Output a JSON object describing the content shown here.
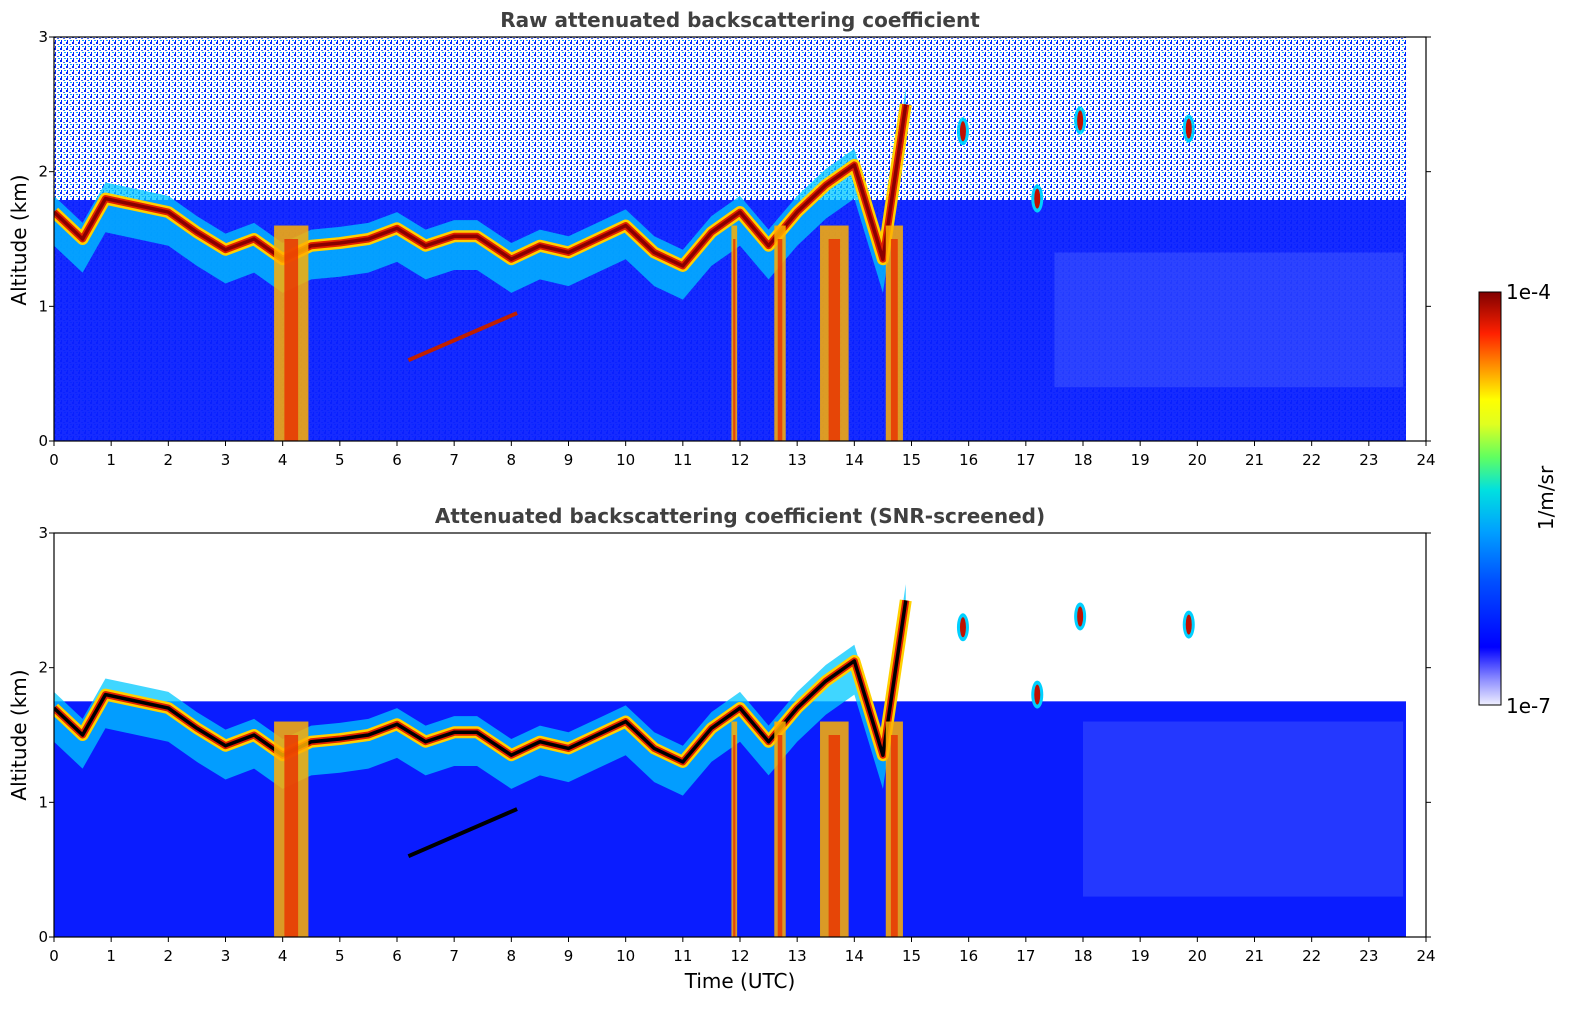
{
  "chart_data": [
    {
      "type": "heatmap",
      "title": "Raw attenuated backscattering coefficient",
      "xlabel": "",
      "ylabel": "Altitude (km)",
      "xlim": [
        0,
        24
      ],
      "ylim": [
        0,
        3
      ],
      "xticks": [
        "0",
        "1",
        "2",
        "3",
        "4",
        "5",
        "6",
        "7",
        "8",
        "9",
        "10",
        "11",
        "12",
        "13",
        "14",
        "15",
        "16",
        "17",
        "18",
        "19",
        "20",
        "21",
        "22",
        "23",
        "24"
      ],
      "yticks": [
        "0",
        "1",
        "2",
        "3"
      ],
      "data_end_time": 23.65,
      "cloud_layer": {
        "times": [
          0,
          0.5,
          0.9,
          2,
          2.5,
          3,
          3.5,
          4,
          4.5,
          5,
          5.5,
          6,
          6.5,
          7,
          7.4,
          8,
          8.5,
          9,
          9.5,
          10,
          10.5,
          11,
          11.5,
          12,
          12.5,
          13,
          13.5,
          14,
          14.5,
          14.9
        ],
        "altitudes_km": [
          1.7,
          1.5,
          1.8,
          1.7,
          1.55,
          1.42,
          1.5,
          1.35,
          1.45,
          1.47,
          1.5,
          1.58,
          1.45,
          1.52,
          1.52,
          1.35,
          1.45,
          1.4,
          1.5,
          1.6,
          1.4,
          1.3,
          1.55,
          1.7,
          1.45,
          1.7,
          1.9,
          2.05,
          1.35,
          2.5
        ]
      },
      "precipitation_shafts": [
        [
          3.85,
          4.45
        ],
        [
          11.85,
          11.95
        ],
        [
          12.6,
          12.8
        ],
        [
          13.4,
          13.9
        ],
        [
          14.55,
          14.85
        ]
      ],
      "elevated_features": [
        [
          15.9,
          2.3
        ],
        [
          17.2,
          1.8
        ],
        [
          17.95,
          2.38
        ],
        [
          19.85,
          2.32
        ]
      ],
      "lower_layer": {
        "start": [
          6.2,
          0.6
        ],
        "end": [
          8.1,
          0.95
        ]
      }
    },
    {
      "type": "heatmap",
      "title": "Attenuated backscattering coefficient (SNR-screened)",
      "xlabel": "Time (UTC)",
      "ylabel": "Altitude (km)",
      "xlim": [
        0,
        24
      ],
      "ylim": [
        0,
        3
      ],
      "xticks": [
        "0",
        "1",
        "2",
        "3",
        "4",
        "5",
        "6",
        "7",
        "8",
        "9",
        "10",
        "11",
        "12",
        "13",
        "14",
        "15",
        "16",
        "17",
        "18",
        "19",
        "20",
        "21",
        "22",
        "23",
        "24"
      ],
      "yticks": [
        "0",
        "1",
        "2",
        "3"
      ],
      "data_end_time": 23.65,
      "screened_top_km": 1.75
    }
  ],
  "colorbar": {
    "label": "1/m/sr",
    "max_label": "1e-4",
    "min_label": "1e-7",
    "scale": "log",
    "colors": [
      "#f0f0ff",
      "#c8c8ff",
      "#9090ff",
      "#5050ff",
      "#0000ff",
      "#0040ff",
      "#0080ff",
      "#00c0ff",
      "#00e0e0",
      "#40ff80",
      "#c0ff40",
      "#ffff00",
      "#ffc000",
      "#ff8000",
      "#ff3000",
      "#e00000",
      "#a00000",
      "#800000"
    ]
  }
}
